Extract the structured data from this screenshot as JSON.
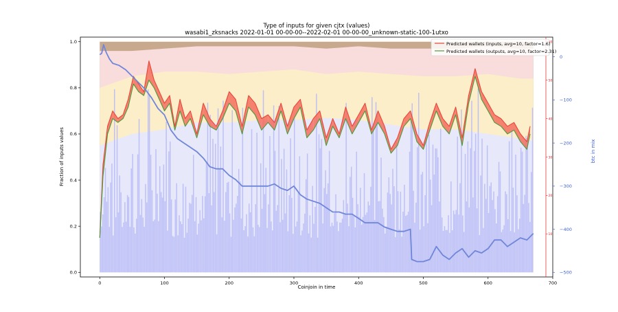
{
  "chart_data": {
    "type": "area",
    "title": "Type of inputs for given cjtx (values)",
    "subtitle": "wasabi1_zksnacks 2022-01-01 00-00-00--2022-02-01 00-00-00_unknown-static-100-1utxo",
    "xlabel": "Coinjoin in time",
    "ylabel": "Fraction of inputs values",
    "ylabel_right_outer": "btc in mix",
    "xlim": [
      -30,
      700
    ],
    "ylim": [
      -0.02,
      1.02
    ],
    "y_wallet_lim": [
      0,
      60
    ],
    "y_mix_lim": [
      -500,
      35
    ],
    "grid": false,
    "legend_position": "top-right",
    "x_ticks": [
      0,
      100,
      200,
      300,
      400,
      500,
      600,
      700
    ],
    "y_ticks": [
      "0.0",
      "0.2",
      "0.4",
      "0.6",
      "0.8",
      "1.0"
    ],
    "y_wallet_ticks": [
      10,
      20,
      30,
      40,
      50,
      60
    ],
    "y_mix_ticks": [
      "0",
      "−100",
      "−200",
      "−300",
      "−400",
      "−500"
    ],
    "colors": {
      "inputs_line": "#e8463a",
      "outputs_line": "#4a9a3c",
      "inputs_fill": "#f26f5e",
      "outputs_fill": "#58b24b",
      "mix_line": "#6f86d9",
      "fresh_bars": "#b6b8f7",
      "remix_bg": "#e7e8fa",
      "pink_bg": "#f9dcdc",
      "yellow_bg": "#fbeec9",
      "brown_top": "#c9a98e",
      "wallet_axis": "#e02020",
      "mix_axis": "#3b5fd6"
    },
    "series": [
      {
        "name": "Predicted wallets (inputs, avg=10, factor=1.6)",
        "x": [
          0,
          5,
          12,
          20,
          28,
          36,
          44,
          52,
          60,
          68,
          76,
          84,
          92,
          100,
          108,
          116,
          124,
          132,
          140,
          150,
          160,
          170,
          180,
          190,
          200,
          210,
          220,
          230,
          240,
          250,
          260,
          270,
          280,
          290,
          300,
          310,
          320,
          330,
          340,
          350,
          360,
          370,
          380,
          390,
          400,
          410,
          420,
          430,
          440,
          450,
          460,
          470,
          480,
          490,
          500,
          510,
          520,
          530,
          540,
          550,
          560,
          570,
          580,
          590,
          600,
          610,
          620,
          630,
          640,
          650,
          660,
          665
        ],
        "values": [
          9,
          28,
          38,
          42,
          40,
          41,
          45,
          51,
          49,
          47,
          55,
          50,
          47,
          44,
          46,
          38,
          45,
          40,
          42,
          36,
          44,
          40,
          38,
          42,
          47,
          45,
          38,
          46,
          44,
          40,
          41,
          39,
          44,
          38,
          43,
          45,
          37,
          40,
          42,
          35,
          40,
          36,
          43,
          38,
          41,
          44,
          37,
          42,
          38,
          32,
          35,
          40,
          42,
          36,
          33,
          39,
          44,
          40,
          38,
          43,
          35,
          46,
          53,
          47,
          44,
          41,
          40,
          38,
          39,
          36,
          34,
          38
        ]
      },
      {
        "name": "Predicted wallets (outputs, avg=10, factor=2.31)",
        "x": [
          0,
          5,
          12,
          20,
          28,
          36,
          44,
          52,
          60,
          68,
          76,
          84,
          92,
          100,
          108,
          116,
          124,
          132,
          140,
          150,
          160,
          170,
          180,
          190,
          200,
          210,
          220,
          230,
          240,
          250,
          260,
          270,
          280,
          290,
          300,
          310,
          320,
          330,
          340,
          350,
          360,
          370,
          380,
          390,
          400,
          410,
          420,
          430,
          440,
          450,
          460,
          470,
          480,
          490,
          500,
          510,
          520,
          530,
          540,
          550,
          560,
          570,
          580,
          590,
          600,
          610,
          620,
          630,
          640,
          650,
          660,
          665
        ],
        "values": [
          9,
          25,
          36,
          40,
          39,
          40,
          43,
          49,
          47,
          46,
          50,
          48,
          45,
          42,
          44,
          37,
          42,
          38,
          40,
          35,
          41,
          38,
          37,
          40,
          44,
          42,
          36,
          43,
          41,
          37,
          39,
          37,
          42,
          36,
          40,
          43,
          35,
          37,
          40,
          33,
          38,
          35,
          40,
          36,
          39,
          42,
          36,
          39,
          36,
          31,
          33,
          38,
          40,
          34,
          32,
          37,
          42,
          38,
          36,
          41,
          33,
          44,
          51,
          45,
          42,
          39,
          38,
          36,
          37,
          34,
          32,
          36
        ]
      },
      {
        "name": "btc in mix",
        "x": [
          0,
          3,
          6,
          10,
          15,
          20,
          30,
          40,
          50,
          60,
          70,
          80,
          90,
          100,
          110,
          120,
          130,
          140,
          150,
          160,
          170,
          180,
          190,
          200,
          210,
          220,
          230,
          240,
          250,
          260,
          270,
          280,
          290,
          300,
          310,
          320,
          330,
          340,
          350,
          360,
          370,
          380,
          390,
          400,
          410,
          420,
          430,
          440,
          450,
          460,
          470,
          480,
          482,
          490,
          500,
          510,
          520,
          530,
          540,
          550,
          560,
          570,
          580,
          590,
          600,
          610,
          620,
          630,
          640,
          650,
          660,
          670
        ],
        "values": [
          5,
          8,
          28,
          10,
          -5,
          -15,
          -20,
          -30,
          -45,
          -60,
          -75,
          -95,
          -120,
          -135,
          -170,
          -190,
          -200,
          -210,
          -220,
          -235,
          -255,
          -260,
          -260,
          -275,
          -285,
          -300,
          -300,
          -300,
          -300,
          -300,
          -295,
          -305,
          -310,
          -300,
          -320,
          -330,
          -335,
          -340,
          -350,
          -360,
          -360,
          -365,
          -365,
          -375,
          -385,
          -385,
          -385,
          -395,
          -400,
          -405,
          -405,
          -400,
          -470,
          -475,
          -475,
          -470,
          -440,
          -460,
          -470,
          -455,
          -445,
          -465,
          -450,
          -455,
          -445,
          -425,
          -425,
          -440,
          -430,
          -420,
          -425,
          -410
        ]
      }
    ],
    "stack_fractions": {
      "x": [
        0,
        50,
        100,
        150,
        200,
        250,
        300,
        350,
        400,
        450,
        500,
        550,
        600,
        650,
        670
      ],
      "remix_top": [
        0.55,
        0.6,
        0.62,
        0.65,
        0.65,
        0.66,
        0.66,
        0.67,
        0.66,
        0.64,
        0.62,
        0.62,
        0.6,
        0.58,
        0.57
      ],
      "yellow_top": [
        0.8,
        0.85,
        0.87,
        0.87,
        0.86,
        0.87,
        0.88,
        0.86,
        0.87,
        0.86,
        0.85,
        0.85,
        0.86,
        0.84,
        0.84
      ],
      "pink_top": [
        0.96,
        0.96,
        0.97,
        0.98,
        0.98,
        0.98,
        0.98,
        0.97,
        0.98,
        0.97,
        0.97,
        0.97,
        0.98,
        0.97,
        0.97
      ]
    }
  }
}
